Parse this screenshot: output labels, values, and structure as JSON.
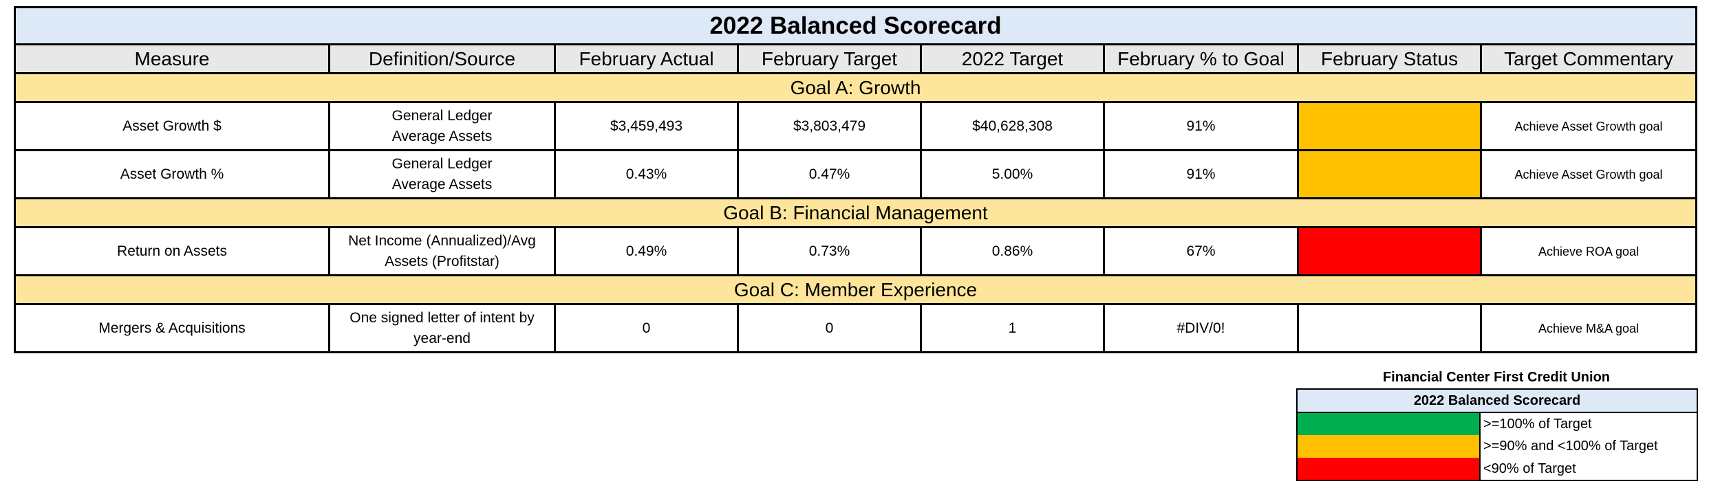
{
  "scorecard": {
    "title": "2022 Balanced Scorecard",
    "headers": [
      "Measure",
      "Definition/Source",
      "February Actual",
      "February Target",
      "2022 Target",
      "February % to Goal",
      "February Status",
      "Target Commentary"
    ],
    "goals": [
      {
        "label": "Goal A: Growth",
        "rows": [
          {
            "measure": "Asset Growth $",
            "definition_line1": "General Ledger",
            "definition_line2": "Average Assets",
            "actual": "$3,459,493",
            "target": "$3,803,479",
            "annual_target": "$40,628,308",
            "pct_to_goal": "91%",
            "status_color": "#FFC000",
            "commentary": "Achieve Asset Growth goal"
          },
          {
            "measure": "Asset Growth %",
            "definition_line1": "General Ledger",
            "definition_line2": "Average Assets",
            "actual": "0.43%",
            "target": "0.47%",
            "annual_target": "5.00%",
            "pct_to_goal": "91%",
            "status_color": "#FFC000",
            "commentary": "Achieve Asset Growth goal"
          }
        ]
      },
      {
        "label": "Goal B: Financial Management",
        "rows": [
          {
            "measure": "Return on Assets",
            "definition_line1": "Net Income (Annualized)/Avg",
            "definition_line2": "Assets (Profitstar)",
            "actual": "0.49%",
            "target": "0.73%",
            "annual_target": "0.86%",
            "pct_to_goal": "67%",
            "status_color": "#FF0000",
            "commentary": "Achieve ROA goal"
          }
        ]
      },
      {
        "label": "Goal C: Member Experience",
        "rows": [
          {
            "measure": "Mergers & Acquisitions",
            "definition_line1": "One signed letter of intent by",
            "definition_line2": "year-end",
            "actual": "0",
            "target": "0",
            "annual_target": "1",
            "pct_to_goal": "#DIV/0!",
            "status_color": "#FFFFFF",
            "commentary": "Achieve M&A goal"
          }
        ]
      }
    ]
  },
  "legend": {
    "organization": "Financial Center First Credit Union",
    "title": "2022 Balanced Scorecard",
    "items": [
      {
        "color": "#00B050",
        "label": ">=100% of Target"
      },
      {
        "color": "#FFC000",
        "label": ">=90% and <100% of Target"
      },
      {
        "color": "#FF0000",
        "label": "<90% of Target"
      }
    ]
  }
}
